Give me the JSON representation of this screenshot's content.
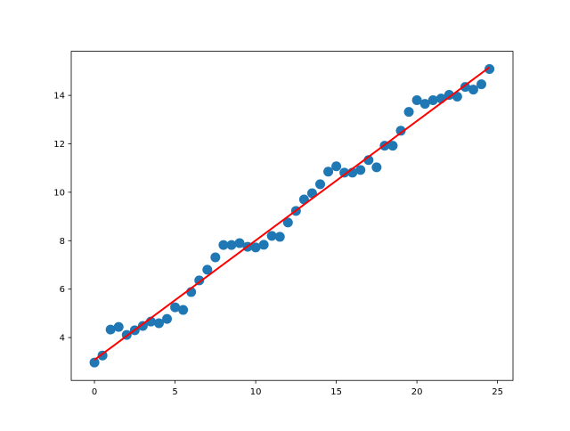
{
  "chart_data": {
    "type": "scatter",
    "title": "",
    "xlabel": "",
    "ylabel": "",
    "xlim": [
      -1.44,
      25.96
    ],
    "ylim": [
      2.23,
      15.82
    ],
    "xticks": [
      0,
      5,
      10,
      15,
      20,
      25
    ],
    "yticks": [
      4,
      6,
      8,
      10,
      12,
      14
    ],
    "grid": false,
    "colors": {
      "points": "#1f77b4",
      "fit_line": "#ff0000"
    },
    "series": [
      {
        "type": "scatter",
        "x": [
          0,
          0.5,
          1,
          1.5,
          2,
          2.5,
          3,
          3.5,
          4,
          4.5,
          5,
          5.5,
          6,
          6.5,
          7,
          7.5,
          8,
          8.5,
          9,
          9.5,
          10,
          10.5,
          11,
          11.5,
          12,
          12.5,
          13,
          13.5,
          14,
          14.5,
          15,
          15.5,
          16,
          16.5,
          17,
          17.5,
          18,
          18.5,
          19,
          19.5,
          20,
          20.5,
          21,
          21.5,
          22,
          22.5,
          23,
          23.5,
          24,
          24.5
        ],
        "y": [
          2.97,
          3.26,
          4.33,
          4.44,
          4.11,
          4.3,
          4.48,
          4.66,
          4.59,
          4.77,
          5.25,
          5.14,
          5.88,
          6.36,
          6.8,
          7.31,
          7.82,
          7.82,
          7.9,
          7.75,
          7.72,
          7.83,
          8.2,
          8.16,
          8.75,
          9.23,
          9.7,
          9.96,
          10.33,
          10.85,
          11.07,
          10.81,
          10.81,
          10.92,
          11.33,
          11.03,
          11.92,
          11.92,
          12.54,
          13.32,
          13.8,
          13.65,
          13.8,
          13.87,
          14.02,
          13.95,
          14.35,
          14.24,
          14.46,
          15.09
        ]
      },
      {
        "type": "line",
        "x": [
          0,
          24.5
        ],
        "y": [
          3.08,
          15.16
        ]
      }
    ]
  }
}
